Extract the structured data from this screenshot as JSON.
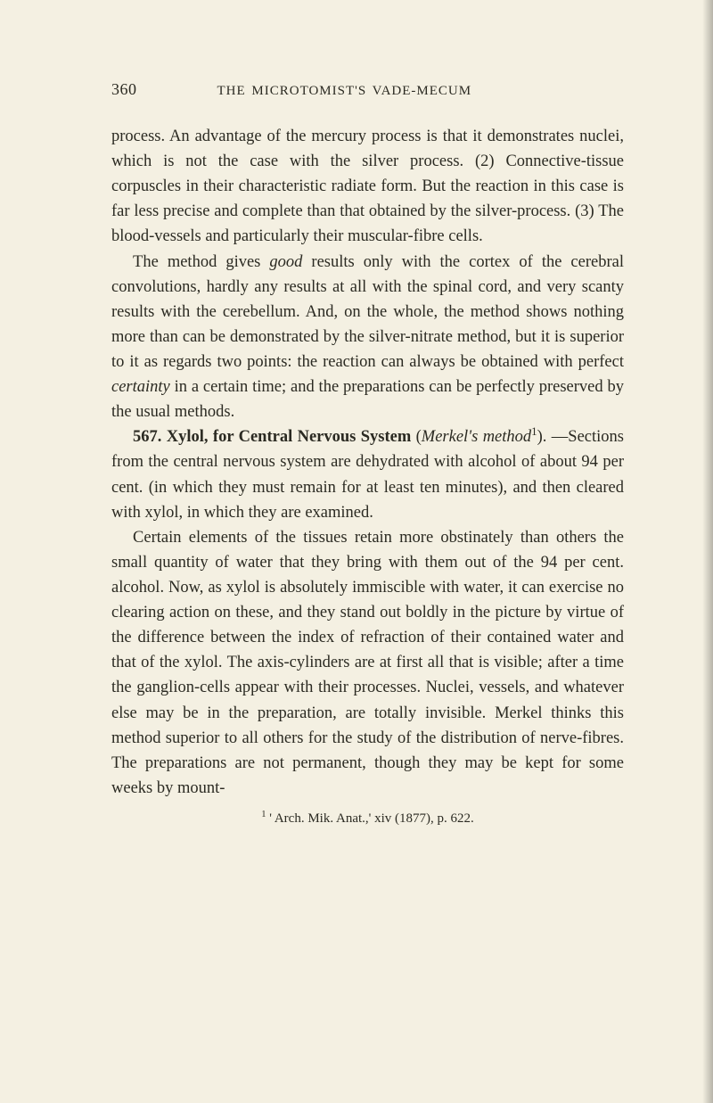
{
  "header": {
    "page_number": "360",
    "running_title": "THE MICROTOMIST'S VADE-MECUM"
  },
  "paragraphs": {
    "p1a": "process. An advantage of the mercury process is that it demonstrates nuclei, which is not the case with the silver process. (2) Connective-tissue corpuscles in their charac­teristic radiate form. But the reaction in this case is far less precise and complete than that obtained by the silver-process. (3) The blood-vessels and particularly their mus­cular-fibre cells.",
    "p2a": "The method gives ",
    "p2_good": "good",
    "p2b": " results only with the cortex of the cerebral convolutions, hardly any results at all with the spinal cord, and very scanty results with the cerebellum. And, on the whole, the method shows nothing more than can be demonstrated by the silver-nitrate method, but it is superior to it as regards two points: the reaction can always be obtained with perfect ",
    "p2_certainty": "certainty",
    "p2c": " in a certain time; and the preparations can be perfectly preserved by the usual methods.",
    "p3_num": "567. ",
    "p3_head": "Xylol, for Central Nervous System",
    "p3_paren_open": " (",
    "p3_ital": "Merkel's method",
    "p3_sup": "1",
    "p3_paren_close": ").",
    "p3_body": " —Sections from the central nervous system are dehydrated with alcohol of about 94 per cent. (in which they must remain for at least ten minutes), and then cleared with xylol, in which they are examined.",
    "p4": "Certain elements of the tissues retain more obstinately than others the small quantity of water that they bring with them out of the 94 per cent. alcohol. Now, as xylol is absolutely immiscible with water, it can exercise no clearing action on these, and they stand out boldly in the picture by virtue of the difference between the index of refraction of their con­tained water and that of the xylol. The axis-cylinders are at first all that is visible; after a time the ganglion-cells appear with their processes. Nuclei, vessels, and whatever else may be in the preparation, are totally invisible. Merkel thinks this method superior to all others for the study of the distribution of nerve-fibres. The preparations are not per­manent, though they may be kept for some weeks by mount-"
  },
  "footnote": {
    "marker": "1",
    "text": " ' Arch. Mik. Anat.,' xiv (1877), p. 622."
  }
}
